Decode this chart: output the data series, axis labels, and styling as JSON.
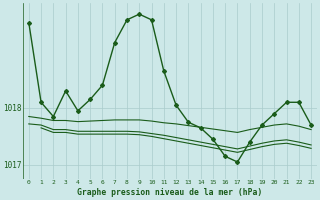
{
  "title": "Graphe pression niveau de la mer (hPa)",
  "background_color": "#cde8e8",
  "grid_color": "#aacccc",
  "line_color_main": "#1a5c1a",
  "line_color_secondary": "#1a5c1a",
  "xlim": [
    -0.5,
    23.5
  ],
  "ylim": [
    1016.75,
    1019.85
  ],
  "yticks": [
    1017,
    1018
  ],
  "xtick_labels": [
    "0",
    "1",
    "2",
    "3",
    "4",
    "5",
    "6",
    "7",
    "8",
    "9",
    "10",
    "11",
    "12",
    "13",
    "14",
    "15",
    "16",
    "17",
    "18",
    "19",
    "20",
    "21",
    "22",
    "23"
  ],
  "series1_x": [
    0,
    1,
    2,
    3,
    4,
    5,
    6,
    7,
    8,
    9,
    10,
    11,
    12,
    13,
    14,
    15,
    16,
    17,
    18,
    19,
    20,
    21,
    22,
    23
  ],
  "series1_y": [
    1019.5,
    1018.1,
    1017.85,
    1018.3,
    1017.95,
    1018.15,
    1018.4,
    1019.15,
    1019.55,
    1019.65,
    1019.55,
    1018.65,
    1018.05,
    1017.75,
    1017.65,
    1017.45,
    1017.15,
    1017.05,
    1017.4,
    1017.7,
    1017.9,
    1018.1,
    1018.1,
    1017.7
  ],
  "series2_x": [
    0,
    1,
    2,
    3,
    4,
    5,
    6,
    7,
    8,
    9,
    10,
    11,
    12,
    13,
    14,
    15,
    16,
    17,
    18,
    19,
    20,
    21,
    22,
    23
  ],
  "series2_y": [
    1017.85,
    1017.82,
    1017.78,
    1017.78,
    1017.76,
    1017.77,
    1017.78,
    1017.79,
    1017.79,
    1017.79,
    1017.77,
    1017.74,
    1017.72,
    1017.69,
    1017.66,
    1017.63,
    1017.6,
    1017.57,
    1017.62,
    1017.66,
    1017.7,
    1017.72,
    1017.68,
    1017.62
  ],
  "series3_x": [
    0,
    1,
    2,
    3,
    4,
    5,
    6,
    7,
    8,
    9,
    10,
    11,
    12,
    13,
    14,
    15,
    16,
    17,
    18,
    19,
    20,
    21,
    22,
    23
  ],
  "series3_y": [
    1017.72,
    1017.7,
    1017.62,
    1017.62,
    1017.59,
    1017.59,
    1017.59,
    1017.59,
    1017.59,
    1017.58,
    1017.55,
    1017.52,
    1017.48,
    1017.44,
    1017.4,
    1017.36,
    1017.32,
    1017.28,
    1017.33,
    1017.38,
    1017.42,
    1017.44,
    1017.4,
    1017.35
  ],
  "series4_x": [
    1,
    2,
    3,
    4,
    5,
    6,
    7,
    8,
    9,
    10,
    11,
    12,
    13,
    14,
    15,
    16,
    17,
    18,
    19,
    20,
    21,
    22,
    23
  ],
  "series4_y": [
    1017.65,
    1017.57,
    1017.57,
    1017.54,
    1017.54,
    1017.54,
    1017.54,
    1017.54,
    1017.53,
    1017.5,
    1017.46,
    1017.42,
    1017.38,
    1017.34,
    1017.3,
    1017.26,
    1017.22,
    1017.27,
    1017.32,
    1017.36,
    1017.38,
    1017.34,
    1017.29
  ]
}
